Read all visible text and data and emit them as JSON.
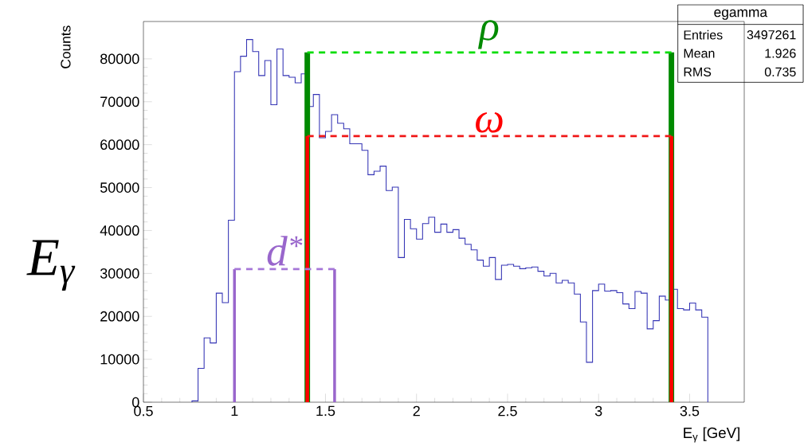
{
  "chart_data": {
    "type": "histogram",
    "xlabel": "E$_{γ}$ [GeV]",
    "ylabel": "Counts",
    "color": "#3535b5",
    "grid": false,
    "bins": [
      0.7667,
      0.8,
      0.8333,
      0.8667,
      0.9,
      0.9333,
      0.9667,
      1,
      1.0333,
      1.0667,
      1.1,
      1.1333,
      1.1667,
      1.2,
      1.2333,
      1.2667,
      1.3,
      1.3333,
      1.3667,
      1.4,
      1.4333,
      1.4667,
      1.5,
      1.5333,
      1.5667,
      1.6,
      1.6333,
      1.6667,
      1.7,
      1.7333,
      1.7667,
      1.8,
      1.8333,
      1.8667,
      1.9,
      1.9333,
      1.9667,
      2,
      2.0333,
      2.0667,
      2.1,
      2.1333,
      2.1667,
      2.2,
      2.2333,
      2.2667,
      2.3,
      2.3333,
      2.3667,
      2.4,
      2.4333,
      2.4667,
      2.5,
      2.5333,
      2.5667,
      2.6,
      2.6333,
      2.6667,
      2.7,
      2.7333,
      2.7667,
      2.8,
      2.8333,
      2.8667,
      2.9,
      2.9333,
      2.9667,
      3,
      3.0333,
      3.0667,
      3.1,
      3.1333,
      3.1667,
      3.2,
      3.2333,
      3.2667,
      3.3,
      3.3333,
      3.3667,
      3.4,
      3.4333,
      3.4667,
      3.5,
      3.5333,
      3.5667,
      3.6
    ],
    "values": [
      300,
      7900,
      15000,
      13800,
      25400,
      23200,
      42400,
      77000,
      80600,
      84500,
      81700,
      76100,
      79600,
      69300,
      82300,
      76100,
      75700,
      74400,
      76500,
      68900,
      71700,
      61600,
      63100,
      67000,
      65000,
      63700,
      60200,
      60200,
      58700,
      53000,
      53800,
      55000,
      49300,
      50100,
      33700,
      42600,
      40400,
      38000,
      41600,
      43100,
      39600,
      41500,
      39600,
      40200,
      38200,
      36800,
      35500,
      33100,
      31700,
      33700,
      28600,
      31900,
      32100,
      31700,
      31100,
      31300,
      31500,
      30500,
      29400,
      30000,
      27800,
      28400,
      27800,
      25200,
      18700,
      9300,
      26000,
      27500,
      25900,
      26000,
      25500,
      22900,
      21800,
      25800,
      25400,
      17100,
      19000,
      24700,
      23800,
      26300,
      21800,
      21500,
      23100,
      21500,
      19800
    ],
    "xlim": [
      0.5,
      3.8
    ],
    "ylim": [
      0,
      88700
    ],
    "xticks": [
      0.5,
      1,
      1.5,
      2,
      2.5,
      3,
      3.5
    ],
    "yticks": [
      0,
      10000,
      20000,
      30000,
      40000,
      50000,
      60000,
      70000,
      80000
    ],
    "series": [
      {
        "type": "line",
        "name": "ρ",
        "color": "#008a00",
        "x": [
          1.4,
          1.4,
          null,
          3.4,
          3.4
        ],
        "values": [
          0,
          81500,
          null,
          81500,
          0
        ],
        "line_style": "solid"
      },
      {
        "type": "line",
        "color": "#00dd00",
        "x": [
          1.4,
          3.4
        ],
        "values": [
          81500,
          81500
        ],
        "line_style": "dashed"
      },
      {
        "type": "line",
        "name": "ω",
        "color": "#ff0000",
        "x": [
          1.4,
          1.4,
          null,
          3.4,
          3.4
        ],
        "values": [
          0,
          62000,
          null,
          62000,
          0
        ],
        "line_style": "solid"
      },
      {
        "type": "line",
        "color": "#f01818",
        "x": [
          1.4,
          3.4
        ],
        "values": [
          62000,
          62000
        ],
        "line_style": "dashed"
      },
      {
        "type": "line",
        "name": "d$^{*}$",
        "color": "#9966cc",
        "x": [
          1,
          1,
          null,
          1.55,
          1.55
        ],
        "values": [
          0,
          31000,
          null,
          31000,
          0
        ],
        "line_style": "solid"
      },
      {
        "type": "line",
        "color": "#a678d8",
        "x": [
          1,
          1.55
        ],
        "values": [
          31000,
          31000
        ],
        "line_style": "dashed"
      }
    ],
    "annotations": [
      "E$_{γ}$",
      "egamma",
      "Entries",
      "3497261",
      "Mean",
      "1.926",
      "RMS",
      "0.735"
    ]
  }
}
